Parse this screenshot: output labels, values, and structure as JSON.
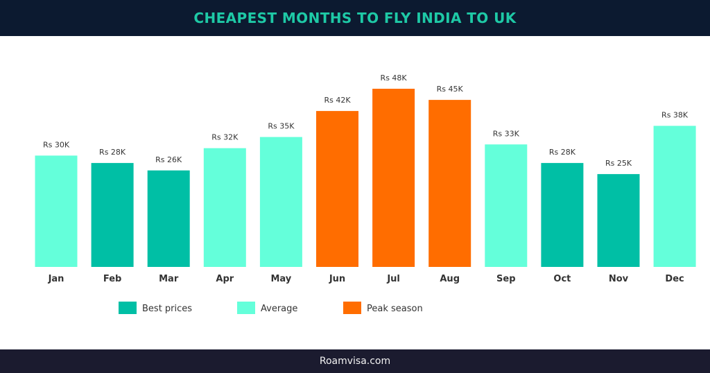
{
  "header": {
    "title": "CHEAPEST MONTHS TO FLY INDIA TO UK"
  },
  "footer": {
    "text": "Roamvisa.com"
  },
  "colors": {
    "header_bg": "#0c1a30",
    "title": "#1ec9a6",
    "footer_bg": "#1b1b2f",
    "best": "#00bfa5",
    "average": "#64ffda",
    "peak": "#ff6d00"
  },
  "chart_data": {
    "type": "bar",
    "title": "CHEAPEST MONTHS TO FLY INDIA TO UK",
    "xlabel": "",
    "ylabel": "",
    "ylim": [
      0,
      48
    ],
    "grid": false,
    "legend_position": "bottom-left",
    "categories": [
      "Jan",
      "Feb",
      "Mar",
      "Apr",
      "May",
      "Jun",
      "Jul",
      "Aug",
      "Sep",
      "Oct",
      "Nov",
      "Dec"
    ],
    "values": [
      30,
      28,
      26,
      32,
      35,
      42,
      48,
      45,
      33,
      28,
      25,
      38
    ],
    "value_labels": [
      "Rs 30K",
      "Rs 28K",
      "Rs 26K",
      "Rs 32K",
      "Rs 35K",
      "Rs 42K",
      "Rs 48K",
      "Rs 45K",
      "Rs 33K",
      "Rs 28K",
      "Rs 25K",
      "Rs 38K"
    ],
    "groups": [
      "average",
      "best",
      "best",
      "average",
      "average",
      "peak",
      "peak",
      "peak",
      "average",
      "best",
      "best",
      "average"
    ],
    "legend": [
      {
        "key": "best",
        "label": "Best prices"
      },
      {
        "key": "average",
        "label": "Average"
      },
      {
        "key": "peak",
        "label": "Peak season"
      }
    ]
  }
}
